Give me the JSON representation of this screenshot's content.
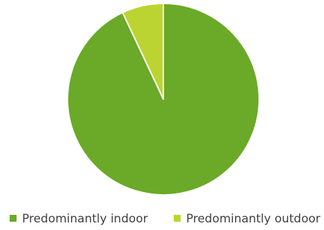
{
  "chart_data": {
    "type": "pie",
    "categories": [
      "Predominantly indoor",
      "Predominantly outdoor"
    ],
    "values": [
      93,
      7
    ],
    "colors": [
      "#6aaa28",
      "#bcd431"
    ],
    "slice_border_color": "#ffffff",
    "legend_position": "bottom",
    "start_angle": "12 o'clock",
    "direction": "clockwise"
  }
}
